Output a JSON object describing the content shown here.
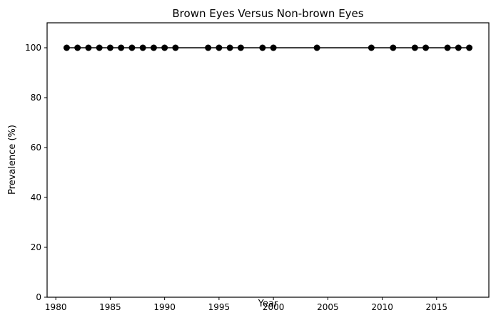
{
  "chart_data": {
    "type": "line",
    "title": "Brown Eyes Versus Non-brown Eyes",
    "xlabel": "Year",
    "ylabel": "Prevalence (%)",
    "xlim": [
      1979.2,
      2019.8
    ],
    "ylim": [
      0,
      110
    ],
    "xticks": [
      1980,
      1985,
      1990,
      1995,
      2000,
      2005,
      2010,
      2015
    ],
    "yticks": [
      0,
      20,
      40,
      60,
      80,
      100
    ],
    "grid": false,
    "series": [
      {
        "x": [
          1981,
          1982,
          1983,
          1984,
          1985,
          1986,
          1987,
          1988,
          1989,
          1990,
          1991,
          1994,
          1995,
          1996,
          1997,
          1999,
          2000,
          2004,
          2009,
          2011,
          2013,
          2014,
          2016,
          2017,
          2018
        ],
        "y": [
          100,
          100,
          100,
          100,
          100,
          100,
          100,
          100,
          100,
          100,
          100,
          100,
          100,
          100,
          100,
          100,
          100,
          100,
          100,
          100,
          100,
          100,
          100,
          100,
          100
        ],
        "color": "#000000",
        "marker": "circle"
      }
    ]
  }
}
